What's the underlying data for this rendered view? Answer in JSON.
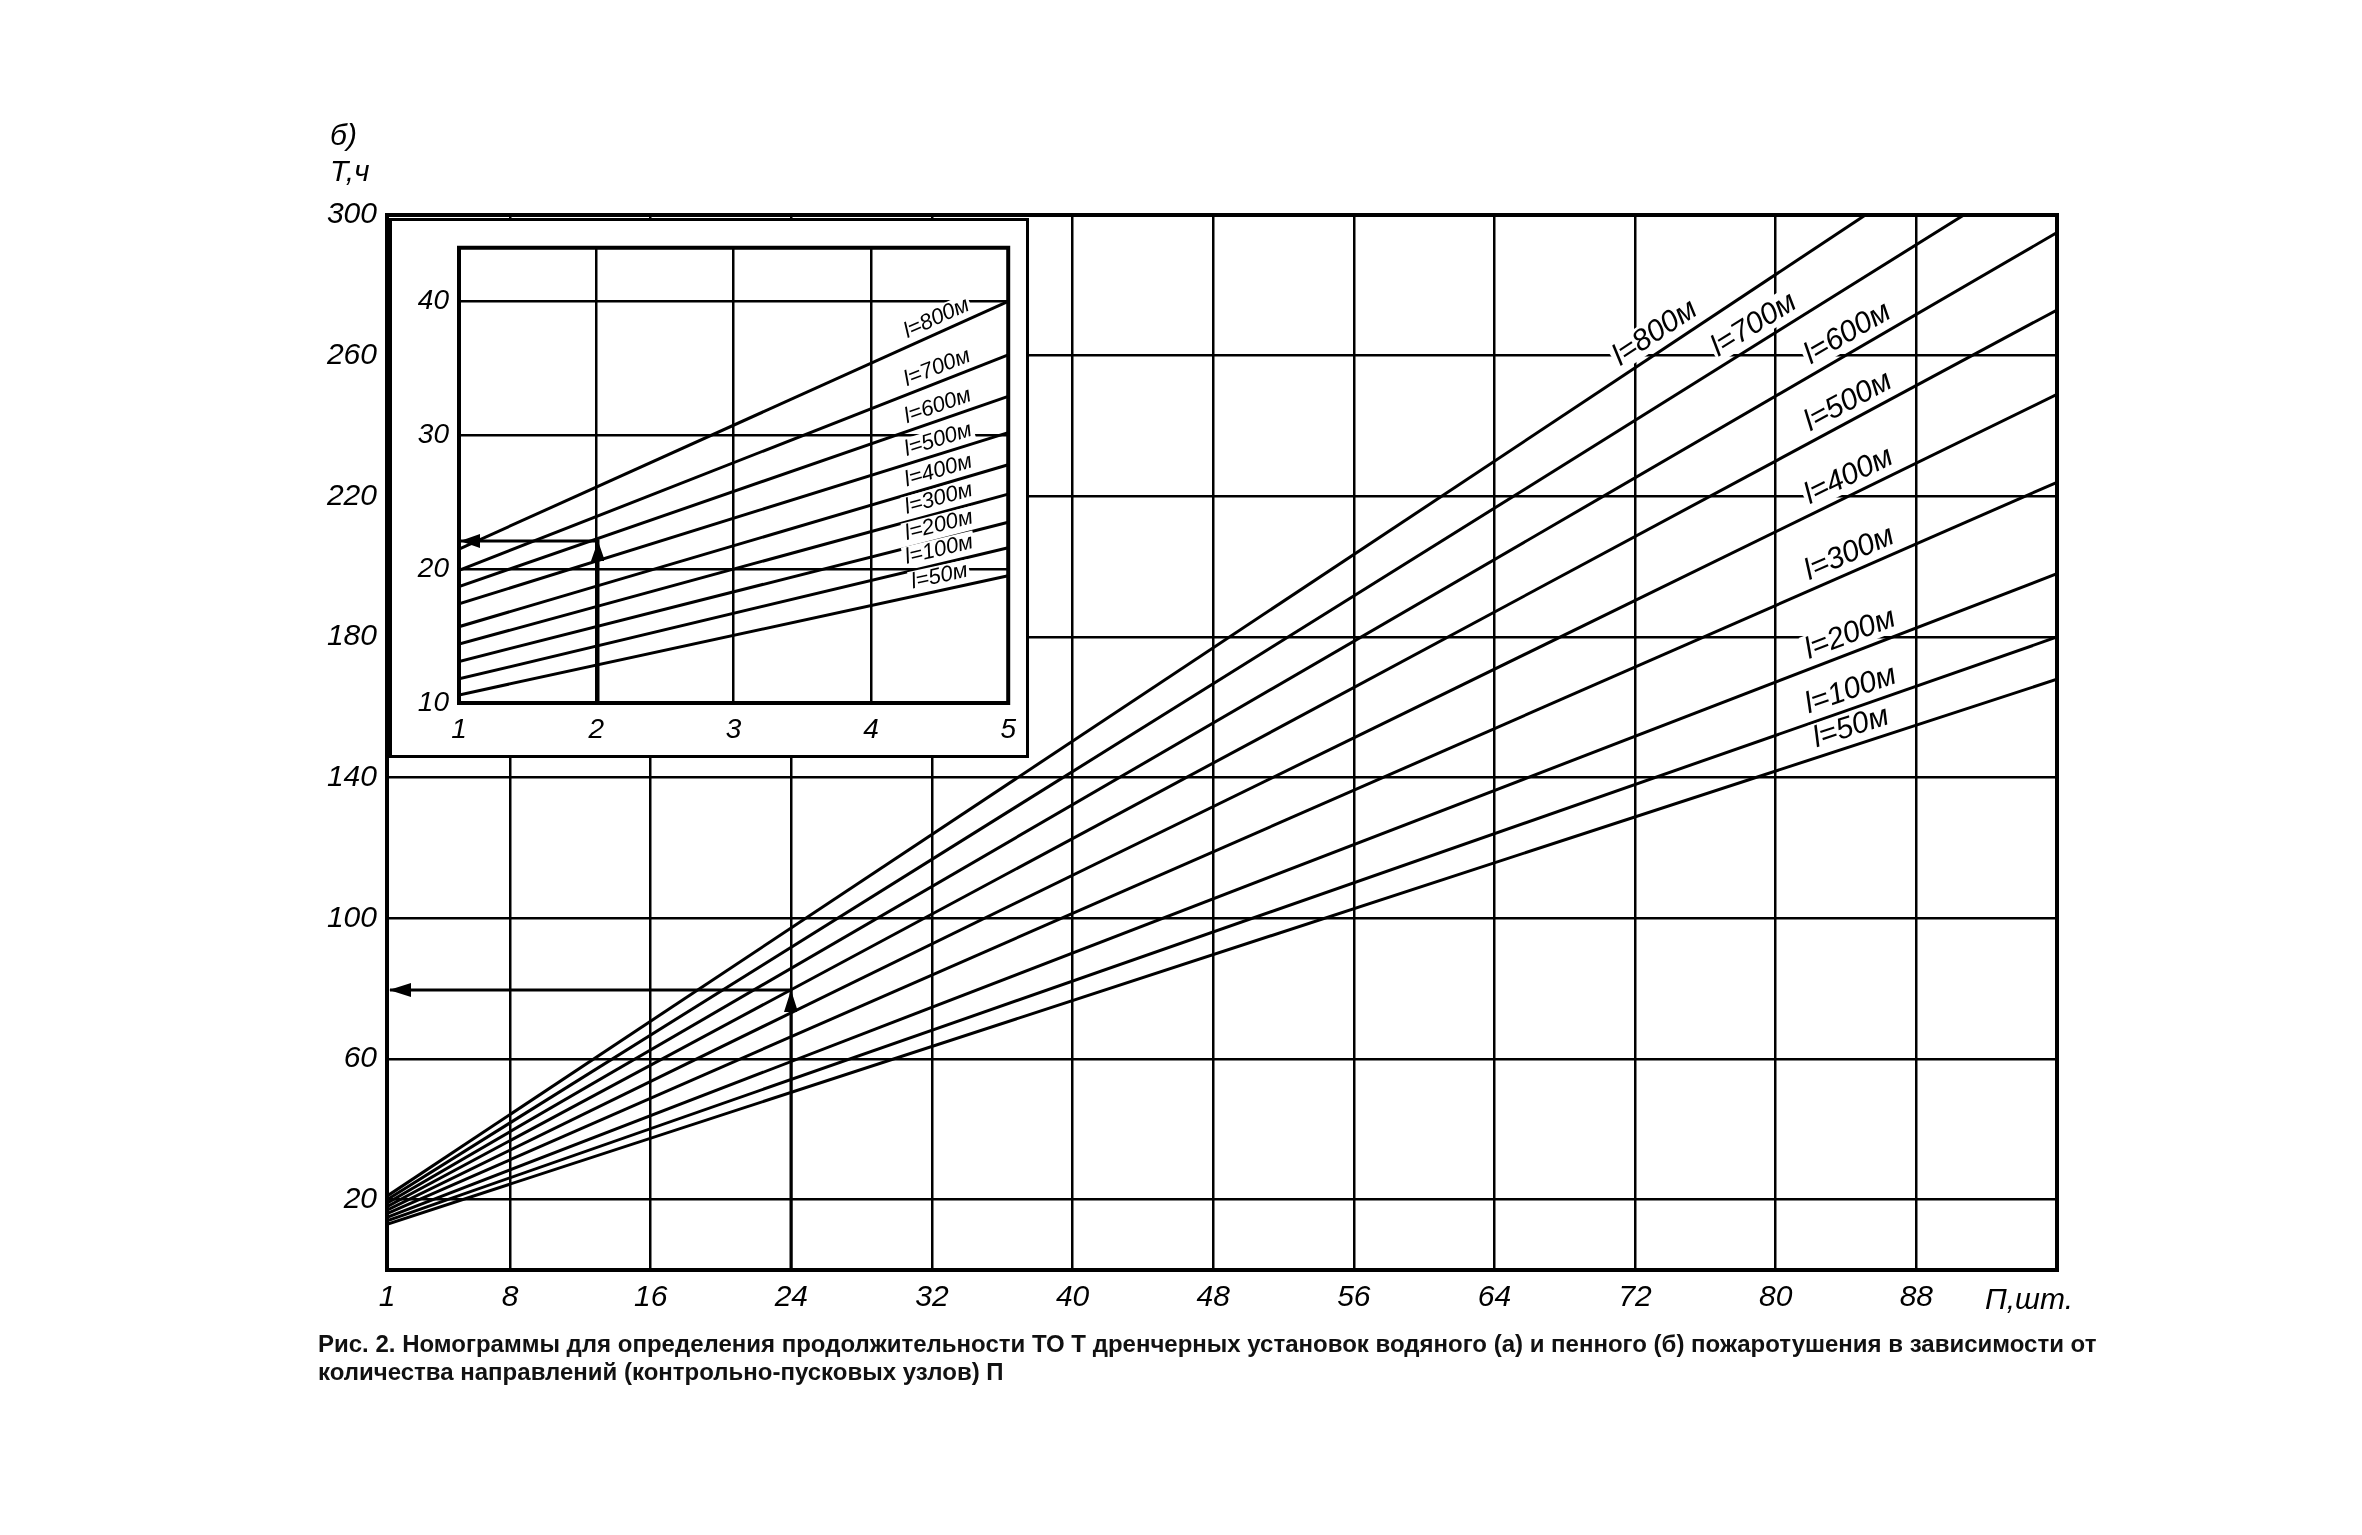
{
  "chart_data": [
    {
      "type": "line",
      "title": "б)",
      "ylabel": "Т,ч",
      "xlabel": "П,шт.",
      "xlim": [
        1,
        96
      ],
      "ylim": [
        0,
        300
      ],
      "xticks": [
        1,
        8,
        16,
        24,
        32,
        40,
        48,
        56,
        64,
        72,
        80,
        88
      ],
      "yticks": [
        20,
        60,
        100,
        140,
        180,
        220,
        260,
        300
      ],
      "grid": true,
      "legend": false,
      "marker": "none",
      "series": [
        {
          "name": "l=800м",
          "color": "#000000",
          "x": [
            1,
            85.1
          ],
          "values": [
            21,
            300
          ]
        },
        {
          "name": "l=700м",
          "color": "#000000",
          "x": [
            1,
            90.7
          ],
          "values": [
            20,
            300
          ]
        },
        {
          "name": "l=600м",
          "color": "#000000",
          "x": [
            1,
            96
          ],
          "values": [
            19,
            295
          ]
        },
        {
          "name": "l=500м",
          "color": "#000000",
          "x": [
            1,
            96
          ],
          "values": [
            18,
            273
          ]
        },
        {
          "name": "l=400м",
          "color": "#000000",
          "x": [
            1,
            96
          ],
          "values": [
            17,
            249
          ]
        },
        {
          "name": "l=300м",
          "color": "#000000",
          "x": [
            1,
            96
          ],
          "values": [
            16,
            224
          ]
        },
        {
          "name": "l=200м",
          "color": "#000000",
          "x": [
            1,
            96
          ],
          "values": [
            15,
            198
          ]
        },
        {
          "name": "l=100м",
          "color": "#000000",
          "x": [
            1,
            96
          ],
          "values": [
            14,
            180
          ]
        },
        {
          "name": "l=50м",
          "color": "#000000",
          "x": [
            1,
            96
          ],
          "values": [
            13,
            168
          ]
        }
      ],
      "annotations": [
        "Рис. 2. Номограммы для определения продолжительности ТО T дренчерных установок водяного (а) и пенного (б) пожаротушения в зависимости от количества направлений (контрольно-пусковых узлов) П"
      ]
    },
    {
      "type": "line",
      "xlim": [
        1,
        5
      ],
      "ylim": [
        10,
        44
      ],
      "xticks": [
        1,
        2,
        3,
        4,
        5
      ],
      "yticks": [
        10,
        20,
        30,
        40
      ],
      "grid": true,
      "legend": false,
      "marker": "none",
      "series": [
        {
          "name": "l=800м",
          "color": "#000000",
          "x": [
            1,
            5
          ],
          "values": [
            21.5,
            40
          ]
        },
        {
          "name": "l=700м",
          "color": "#000000",
          "x": [
            1,
            5
          ],
          "values": [
            19.9,
            36
          ]
        },
        {
          "name": "l=600м",
          "color": "#000000",
          "x": [
            1,
            5
          ],
          "values": [
            18.7,
            32.9
          ]
        },
        {
          "name": "l=500м",
          "color": "#000000",
          "x": [
            1,
            5
          ],
          "values": [
            17.4,
            30.2
          ]
        },
        {
          "name": "l=400м",
          "color": "#000000",
          "x": [
            1,
            5
          ],
          "values": [
            15.7,
            27.8
          ]
        },
        {
          "name": "l=300м",
          "color": "#000000",
          "x": [
            1,
            5
          ],
          "values": [
            14.4,
            25.6
          ]
        },
        {
          "name": "l=200м",
          "color": "#000000",
          "x": [
            1,
            5
          ],
          "values": [
            13.1,
            23.5
          ]
        },
        {
          "name": "l=100м",
          "color": "#000000",
          "x": [
            1,
            5
          ],
          "values": [
            11.8,
            21.6
          ]
        },
        {
          "name": "l=50м",
          "color": "#000000",
          "x": [
            1,
            5
          ],
          "values": [
            10.6,
            19.5
          ]
        }
      ]
    }
  ]
}
